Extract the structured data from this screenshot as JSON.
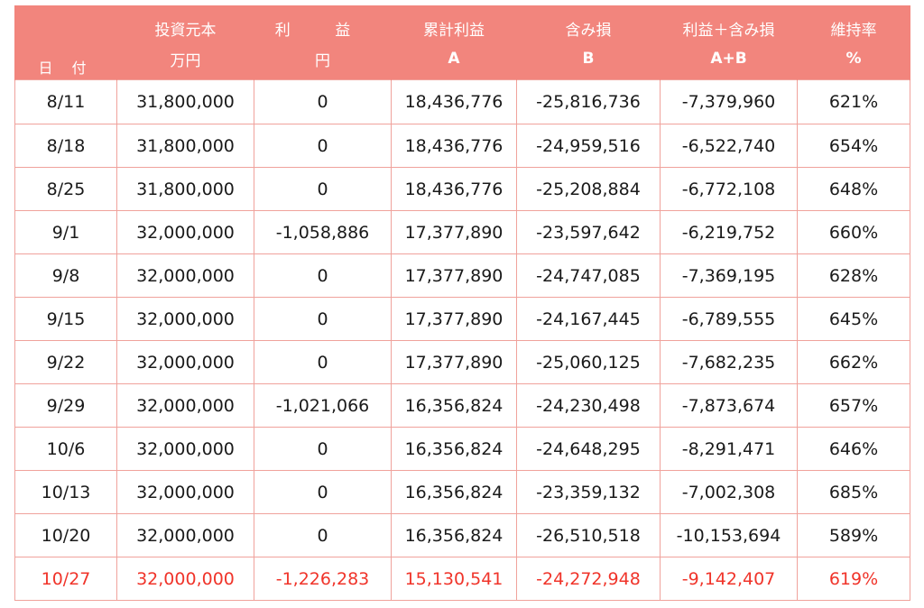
{
  "header": {
    "date": "日 付",
    "principal": "投資元本",
    "principal_unit": "万円",
    "profit": "利 益",
    "profit_unit": "円",
    "cumulative": "累計利益",
    "cumulative_sub": "A",
    "unrealized": "含み損",
    "unrealized_sub": "B",
    "total": "利益＋含み損",
    "total_sub": "A+B",
    "ratio": "維持率",
    "ratio_sub": "%"
  },
  "rows": [
    {
      "date": "8/11",
      "principal": "31,800,000",
      "profit": "0",
      "cumulative": "18,436,776",
      "unrealized": "-25,816,736",
      "total": "-7,379,960",
      "ratio": "621%"
    },
    {
      "date": "8/18",
      "principal": "31,800,000",
      "profit": "0",
      "cumulative": "18,436,776",
      "unrealized": "-24,959,516",
      "total": "-6,522,740",
      "ratio": "654%"
    },
    {
      "date": "8/25",
      "principal": "31,800,000",
      "profit": "0",
      "cumulative": "18,436,776",
      "unrealized": "-25,208,884",
      "total": "-6,772,108",
      "ratio": "648%"
    },
    {
      "date": "9/1",
      "principal": "32,000,000",
      "profit": "-1,058,886",
      "cumulative": "17,377,890",
      "unrealized": "-23,597,642",
      "total": "-6,219,752",
      "ratio": "660%"
    },
    {
      "date": "9/8",
      "principal": "32,000,000",
      "profit": "0",
      "cumulative": "17,377,890",
      "unrealized": "-24,747,085",
      "total": "-7,369,195",
      "ratio": "628%"
    },
    {
      "date": "9/15",
      "principal": "32,000,000",
      "profit": "0",
      "cumulative": "17,377,890",
      "unrealized": "-24,167,445",
      "total": "-6,789,555",
      "ratio": "645%"
    },
    {
      "date": "9/22",
      "principal": "32,000,000",
      "profit": "0",
      "cumulative": "17,377,890",
      "unrealized": "-25,060,125",
      "total": "-7,682,235",
      "ratio": "662%"
    },
    {
      "date": "9/29",
      "principal": "32,000,000",
      "profit": "-1,021,066",
      "cumulative": "16,356,824",
      "unrealized": "-24,230,498",
      "total": "-7,873,674",
      "ratio": "657%"
    },
    {
      "date": "10/6",
      "principal": "32,000,000",
      "profit": "0",
      "cumulative": "16,356,824",
      "unrealized": "-24,648,295",
      "total": "-8,291,471",
      "ratio": "646%"
    },
    {
      "date": "10/13",
      "principal": "32,000,000",
      "profit": "0",
      "cumulative": "16,356,824",
      "unrealized": "-23,359,132",
      "total": "-7,002,308",
      "ratio": "685%"
    },
    {
      "date": "10/20",
      "principal": "32,000,000",
      "profit": "0",
      "cumulative": "16,356,824",
      "unrealized": "-26,510,518",
      "total": "-10,153,694",
      "ratio": "589%"
    },
    {
      "date": "10/27",
      "principal": "32,000,000",
      "profit": "-1,226,283",
      "cumulative": "15,130,541",
      "unrealized": "-24,272,948",
      "total": "-9,142,407",
      "ratio": "619%"
    }
  ],
  "highlight_row": "10/27",
  "colors": {
    "header_bg": "#f2857d",
    "grid": "#f0a29c",
    "highlight_text": "#f0342a"
  }
}
